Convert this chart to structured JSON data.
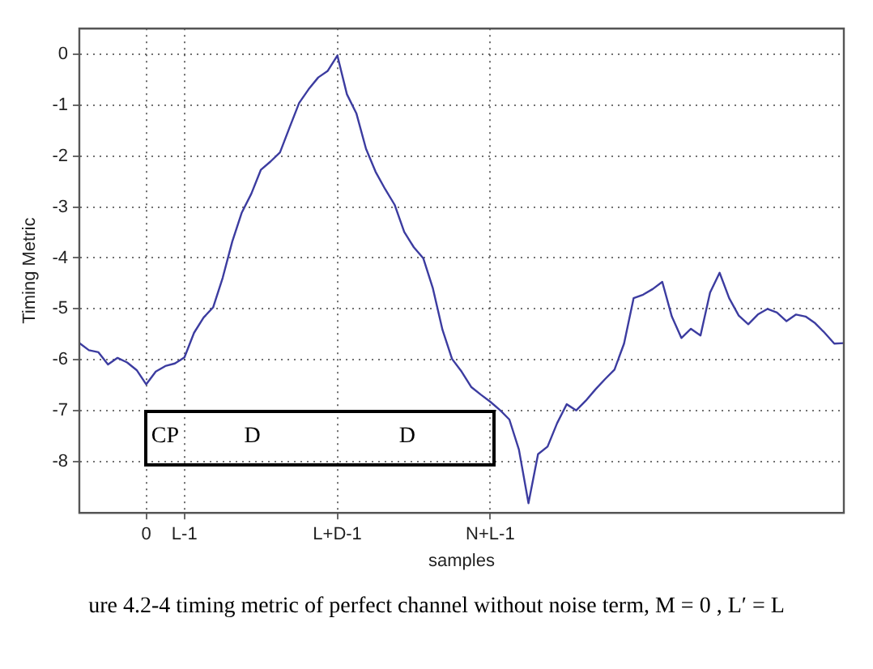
{
  "chart_data": {
    "type": "line",
    "xlabel": "samples",
    "ylabel": "Timing Metric",
    "categories": [
      null,
      null,
      null,
      null,
      null,
      null,
      null,
      "0",
      null,
      null,
      null,
      "L-1",
      null,
      null,
      null,
      null,
      null,
      null,
      null,
      null,
      null,
      null,
      null,
      null,
      null,
      null,
      null,
      "L+D-1",
      null,
      null,
      null,
      null,
      null,
      null,
      null,
      null,
      null,
      null,
      null,
      null,
      null,
      null,
      null,
      "N+L-1",
      null,
      null,
      null,
      null,
      null,
      null,
      null,
      null,
      null,
      null,
      null,
      null,
      null,
      null,
      null,
      null,
      null,
      null,
      null,
      null,
      null,
      null,
      null,
      null,
      null,
      null,
      null,
      null,
      null,
      null,
      null,
      null,
      null,
      null,
      null,
      null,
      null
    ],
    "ylim": [
      -9,
      0.5
    ],
    "yticks": [
      -8,
      -7,
      -6,
      -5,
      -4,
      -3,
      -2,
      -1,
      0
    ],
    "grid": true,
    "legend": false,
    "line_style": "solid",
    "marker": "none",
    "series": [
      {
        "color": "#3c3ca0",
        "values": [
          -5.67,
          -5.81,
          -5.85,
          -6.09,
          -5.96,
          -6.05,
          -6.2,
          -6.48,
          -6.23,
          -6.12,
          -6.07,
          -5.95,
          -5.47,
          -5.17,
          -4.97,
          -4.39,
          -3.68,
          -3.11,
          -2.74,
          -2.27,
          -2.11,
          -1.93,
          -1.44,
          -0.96,
          -0.69,
          -0.46,
          -0.33,
          -0.03,
          -0.79,
          -1.17,
          -1.86,
          -2.31,
          -2.65,
          -2.96,
          -3.49,
          -3.79,
          -4.01,
          -4.6,
          -5.41,
          -5.98,
          -6.23,
          -6.53,
          -6.68,
          -6.82,
          -6.98,
          -7.17,
          -7.76,
          -8.81,
          -7.85,
          -7.7,
          -7.24,
          -6.87,
          -6.99,
          -6.8,
          -6.58,
          -6.38,
          -6.19,
          -5.68,
          -4.79,
          -4.72,
          -4.61,
          -4.47,
          -5.15,
          -5.57,
          -5.39,
          -5.52,
          -4.68,
          -4.29,
          -4.79,
          -5.13,
          -5.3,
          -5.11,
          -5,
          -5.07,
          -5.24,
          -5.11,
          -5.15,
          -5.28,
          -5.47,
          -5.68,
          -5.67
        ]
      }
    ],
    "annotations": [
      "CP",
      "D",
      "D",
      "ure 4.2-4 timing metric of perfect channel without noise term, M = 0 , L′ = L"
    ]
  }
}
